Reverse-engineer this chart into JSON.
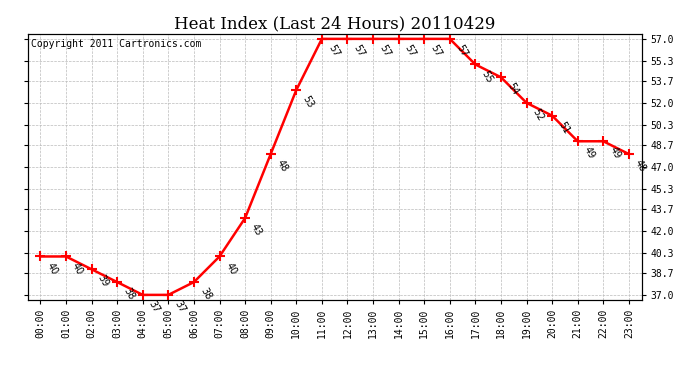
{
  "title": "Heat Index (Last 24 Hours) 20110429",
  "copyright_text": "Copyright 2011 Cartronics.com",
  "hours": [
    0,
    1,
    2,
    3,
    4,
    5,
    6,
    7,
    8,
    9,
    10,
    11,
    12,
    13,
    14,
    15,
    16,
    17,
    18,
    19,
    20,
    21,
    22,
    23
  ],
  "values": [
    40,
    40,
    39,
    38,
    37,
    37,
    38,
    40,
    43,
    48,
    53,
    57,
    57,
    57,
    57,
    57,
    57,
    55,
    54,
    52,
    51,
    49,
    49,
    48
  ],
  "x_labels": [
    "00:00",
    "01:00",
    "02:00",
    "03:00",
    "04:00",
    "05:00",
    "06:00",
    "07:00",
    "08:00",
    "09:00",
    "10:00",
    "11:00",
    "12:00",
    "13:00",
    "14:00",
    "15:00",
    "16:00",
    "17:00",
    "18:00",
    "19:00",
    "20:00",
    "21:00",
    "22:00",
    "23:00"
  ],
  "y_ticks": [
    37.0,
    38.7,
    40.3,
    42.0,
    43.7,
    45.3,
    47.0,
    48.7,
    50.3,
    52.0,
    53.7,
    55.3,
    57.0
  ],
  "y_min": 37.0,
  "y_max": 57.0,
  "line_color": "red",
  "marker": "+",
  "marker_color": "red",
  "marker_size": 7,
  "line_width": 1.8,
  "bg_color": "white",
  "plot_bg_color": "white",
  "grid_color": "#bbbbbb",
  "title_fontsize": 12,
  "label_fontsize": 7,
  "tick_fontsize": 7,
  "copyright_fontsize": 7
}
